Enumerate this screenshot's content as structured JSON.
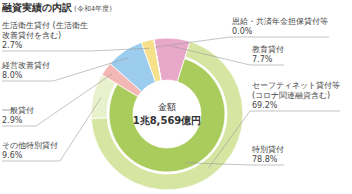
{
  "chart_data": {
    "type": "donut",
    "title": "融資実績の内訳",
    "subtitle": "(令和4年度)",
    "center_label": "金額",
    "center_value": "1兆8,569億円",
    "categories": [
      "教育貸付",
      "特別貸付",
      "一般貸付",
      "経営改善貸付",
      "生活衛生貸付 (生活衛生\n改善貸付を含む)",
      "恩給・共済年金担保貸付等"
    ],
    "values": [
      7.7,
      78.8,
      2.9,
      8.0,
      2.7,
      0.0
    ],
    "value_labels": [
      "7.7%",
      "78.8%",
      "2.9%",
      "8.0%",
      "2.7%",
      "0.0%"
    ],
    "colors": [
      "#e8a9c9",
      "#a9cc5c",
      "#f3b8b4",
      "#9ccdee",
      "#f6e08a",
      "#cccccc"
    ],
    "breakdown": [
      null,
      {
        "categories": [
          "セーフティネット貸付等\n(コロナ関連融資含む)",
          "その他特別貸付"
        ],
        "values": [
          69.2,
          9.6
        ],
        "value_labels": [
          "69.2%",
          "9.6%"
        ],
        "colors": [
          "#d6e6a2",
          "#e9f1cc"
        ]
      },
      null,
      null,
      null,
      null
    ],
    "data_labels": true
  }
}
